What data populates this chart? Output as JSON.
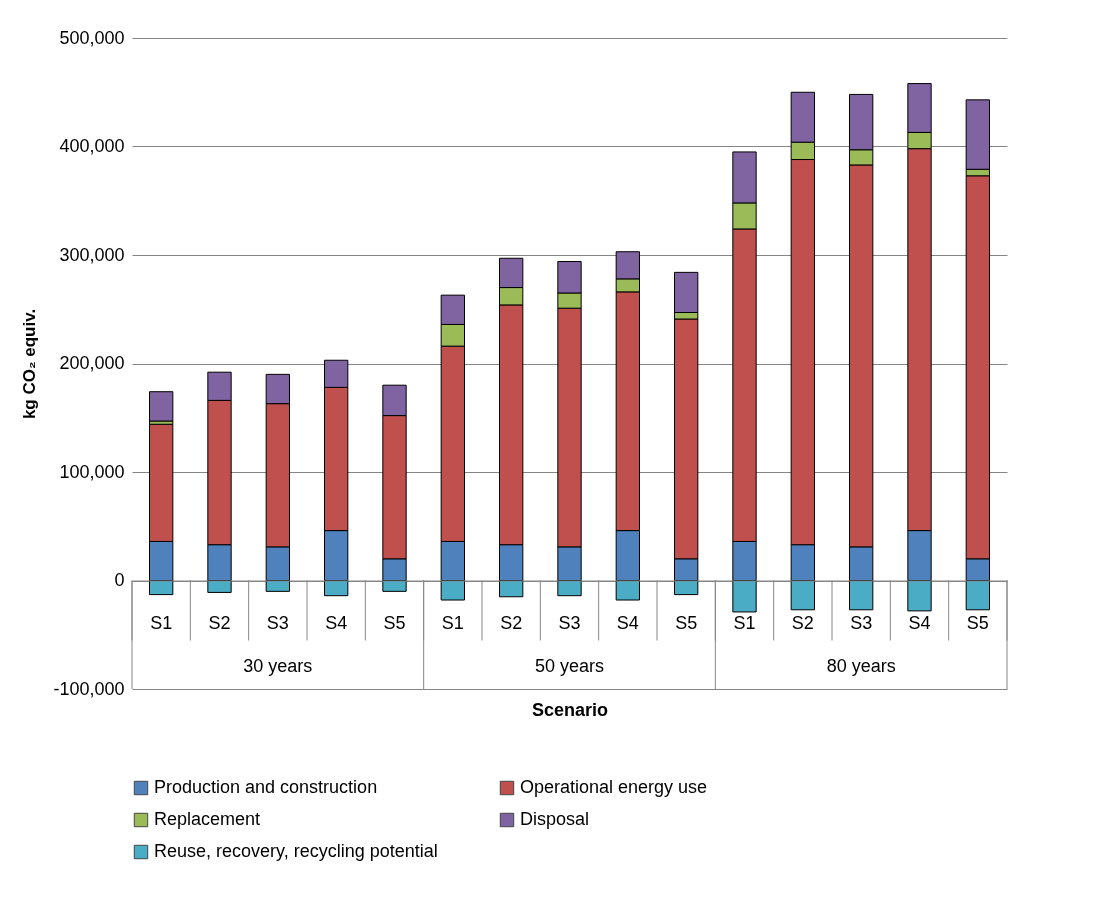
{
  "chart_data": {
    "type": "bar",
    "stacked": true,
    "xlabel": "Scenario",
    "ylabel": "kg CO₂ equiv.",
    "categories": [
      "S1",
      "S2",
      "S3",
      "S4",
      "S5",
      "S1",
      "S2",
      "S3",
      "S4",
      "S5",
      "S1",
      "S2",
      "S3",
      "S4",
      "S5"
    ],
    "annotations": [
      "30 years",
      "50 years",
      "80 years"
    ],
    "series": [
      {
        "name": "Production and construction",
        "color": "#4f81bd",
        "values": [
          36000,
          33000,
          31000,
          46000,
          20000,
          36000,
          33000,
          31000,
          46000,
          20000,
          36000,
          33000,
          31000,
          46000,
          20000
        ]
      },
      {
        "name": "Operational energy use",
        "color": "#c0504d",
        "values": [
          108000,
          133000,
          132000,
          132000,
          132000,
          180000,
          221000,
          220000,
          220000,
          221000,
          288000,
          355000,
          352000,
          352000,
          353000
        ]
      },
      {
        "name": "Replacement",
        "color": "#9bbb59",
        "values": [
          3000,
          null,
          null,
          null,
          null,
          20000,
          16000,
          14000,
          12000,
          6000,
          24000,
          16000,
          14000,
          15000,
          6000
        ]
      },
      {
        "name": "Disposal",
        "color": "#8064a2",
        "values": [
          27000,
          26000,
          27000,
          25000,
          28000,
          27000,
          27000,
          29000,
          25000,
          37000,
          47000,
          46000,
          51000,
          45000,
          64000
        ]
      },
      {
        "name": "Reuse, recovery, recycling potential",
        "color": "#4bacc6",
        "values": [
          -13000,
          -11000,
          -10000,
          -14000,
          -10000,
          -18000,
          -15000,
          -14000,
          -18000,
          -13000,
          -29000,
          -27000,
          -27000,
          -28000,
          -27000
        ]
      }
    ],
    "ylim": [
      -100000,
      500000
    ],
    "yticks": [
      {
        "value": -100000,
        "label": "-100,000"
      },
      0,
      {
        "value": 100000,
        "label": "100,000"
      },
      {
        "value": 200000,
        "label": "200,000"
      },
      {
        "value": 300000,
        "label": "300,000"
      },
      {
        "value": 400000,
        "label": "400,000"
      },
      {
        "value": 500000,
        "label": "500,000"
      }
    ],
    "grid": "y",
    "legend": "bottom"
  }
}
